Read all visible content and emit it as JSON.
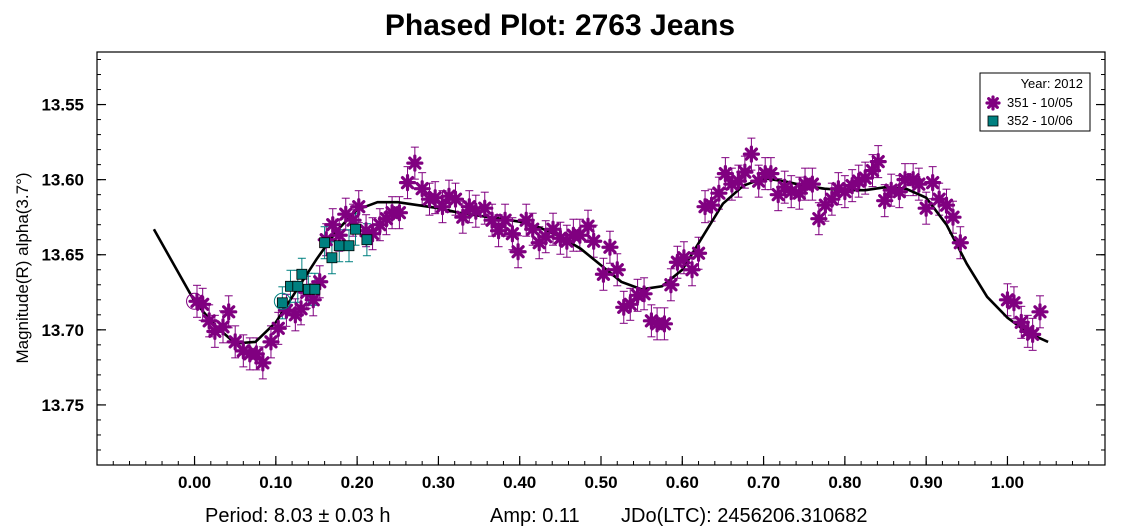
{
  "chart_data": {
    "type": "scatter",
    "title": "Phased Plot: 2763 Jeans",
    "ylabel": "Magnitude(R) alpha(3.7°)",
    "xlabel": "",
    "xlim": [
      -0.12,
      1.12
    ],
    "ylim": [
      13.79,
      13.515
    ],
    "y_inverted": true,
    "x_ticks": [
      "0.00",
      "0.10",
      "0.20",
      "0.30",
      "0.40",
      "0.50",
      "0.60",
      "0.70",
      "0.80",
      "0.90",
      "1.00"
    ],
    "x_tick_values": [
      0.0,
      0.1,
      0.2,
      0.3,
      0.4,
      0.5,
      0.6,
      0.7,
      0.8,
      0.9,
      1.0
    ],
    "y_ticks": [
      "13.55",
      "13.60",
      "13.65",
      "13.70",
      "13.75"
    ],
    "y_tick_values": [
      13.55,
      13.6,
      13.65,
      13.7,
      13.75
    ],
    "grid": false,
    "legend": {
      "placement": "top-right",
      "title": "Year: 2012",
      "entries": [
        "351 - 10/05",
        "352 - 10/06"
      ]
    },
    "footer": {
      "period": "Period: 8.03 ± 0.03 h",
      "amp": "Amp: 0.11",
      "jdo": "JDo(LTC): 2456206.310682"
    },
    "series": [
      {
        "name": "351 - 10/05",
        "marker": "asterisk",
        "color": "#800080",
        "points": [
          [
            0.003,
            13.681
          ],
          [
            0.01,
            13.683
          ],
          [
            0.018,
            13.694
          ],
          [
            0.025,
            13.701
          ],
          [
            0.035,
            13.698
          ],
          [
            0.042,
            13.688
          ],
          [
            0.05,
            13.708
          ],
          [
            0.06,
            13.714
          ],
          [
            0.068,
            13.716
          ],
          [
            0.076,
            13.716
          ],
          [
            0.084,
            13.722
          ],
          [
            0.094,
            13.708
          ],
          [
            0.103,
            13.699
          ],
          [
            0.113,
            13.687
          ],
          [
            0.124,
            13.69
          ],
          [
            0.131,
            13.686
          ],
          [
            0.138,
            13.675
          ],
          [
            0.146,
            13.68
          ],
          [
            0.154,
            13.668
          ],
          [
            0.162,
            13.64
          ],
          [
            0.17,
            13.63
          ],
          [
            0.178,
            13.637
          ],
          [
            0.186,
            13.623
          ],
          [
            0.195,
            13.627
          ],
          [
            0.202,
            13.618
          ],
          [
            0.211,
            13.634
          ],
          [
            0.219,
            13.636
          ],
          [
            0.228,
            13.63
          ],
          [
            0.236,
            13.626
          ],
          [
            0.243,
            13.622
          ],
          [
            0.252,
            13.622
          ],
          [
            0.262,
            13.602
          ],
          [
            0.271,
            13.589
          ],
          [
            0.28,
            13.606
          ],
          [
            0.289,
            13.613
          ],
          [
            0.296,
            13.612
          ],
          [
            0.305,
            13.618
          ],
          [
            0.313,
            13.611
          ],
          [
            0.321,
            13.613
          ],
          [
            0.33,
            13.625
          ],
          [
            0.338,
            13.618
          ],
          [
            0.346,
            13.621
          ],
          [
            0.357,
            13.619
          ],
          [
            0.366,
            13.627
          ],
          [
            0.374,
            13.634
          ],
          [
            0.382,
            13.627
          ],
          [
            0.391,
            13.636
          ],
          [
            0.398,
            13.648
          ],
          [
            0.408,
            13.627
          ],
          [
            0.416,
            13.633
          ],
          [
            0.424,
            13.642
          ],
          [
            0.432,
            13.638
          ],
          [
            0.441,
            13.633
          ],
          [
            0.45,
            13.639
          ],
          [
            0.458,
            13.641
          ],
          [
            0.466,
            13.637
          ],
          [
            0.474,
            13.637
          ],
          [
            0.484,
            13.631
          ],
          [
            0.491,
            13.641
          ],
          [
            0.503,
            13.663
          ],
          [
            0.511,
            13.645
          ],
          [
            0.52,
            13.66
          ],
          [
            0.528,
            13.685
          ],
          [
            0.536,
            13.683
          ],
          [
            0.545,
            13.677
          ],
          [
            0.553,
            13.676
          ],
          [
            0.562,
            13.694
          ],
          [
            0.569,
            13.696
          ],
          [
            0.578,
            13.696
          ],
          [
            0.586,
            13.67
          ],
          [
            0.594,
            13.655
          ],
          [
            0.602,
            13.652
          ],
          [
            0.612,
            13.66
          ],
          [
            0.62,
            13.649
          ],
          [
            0.628,
            13.618
          ],
          [
            0.636,
            13.617
          ],
          [
            0.645,
            13.609
          ],
          [
            0.653,
            13.596
          ],
          [
            0.661,
            13.603
          ],
          [
            0.669,
            13.601
          ],
          [
            0.677,
            13.595
          ],
          [
            0.685,
            13.583
          ],
          [
            0.694,
            13.601
          ],
          [
            0.702,
            13.596
          ],
          [
            0.709,
            13.596
          ],
          [
            0.718,
            13.61
          ],
          [
            0.726,
            13.605
          ],
          [
            0.734,
            13.608
          ],
          [
            0.744,
            13.609
          ],
          [
            0.751,
            13.603
          ],
          [
            0.76,
            13.603
          ],
          [
            0.768,
            13.626
          ],
          [
            0.776,
            13.617
          ],
          [
            0.784,
            13.613
          ],
          [
            0.792,
            13.606
          ],
          [
            0.8,
            13.608
          ],
          [
            0.809,
            13.604
          ],
          [
            0.817,
            13.601
          ],
          [
            0.825,
            13.599
          ],
          [
            0.834,
            13.594
          ],
          [
            0.841,
            13.588
          ],
          [
            0.849,
            13.614
          ],
          [
            0.857,
            13.607
          ],
          [
            0.867,
            13.608
          ],
          [
            0.874,
            13.6
          ],
          [
            0.884,
            13.6
          ],
          [
            0.891,
            13.603
          ],
          [
            0.9,
            13.619
          ],
          [
            0.908,
            13.602
          ],
          [
            0.916,
            13.613
          ],
          [
            0.925,
            13.617
          ],
          [
            0.933,
            13.625
          ],
          [
            0.942,
            13.642
          ],
          [
            1.0,
            13.68
          ],
          [
            1.008,
            13.682
          ],
          [
            1.017,
            13.695
          ],
          [
            1.025,
            13.701
          ],
          [
            1.031,
            13.703
          ],
          [
            1.04,
            13.688
          ]
        ]
      },
      {
        "name": "352 - 10/06",
        "marker": "square",
        "color": "#008080",
        "points": [
          [
            0.108,
            13.682
          ],
          [
            0.118,
            13.671
          ],
          [
            0.127,
            13.671
          ],
          [
            0.132,
            13.663
          ],
          [
            0.14,
            13.673
          ],
          [
            0.148,
            13.673
          ],
          [
            0.16,
            13.642
          ],
          [
            0.169,
            13.652
          ],
          [
            0.178,
            13.644
          ],
          [
            0.19,
            13.644
          ],
          [
            0.198,
            13.633
          ],
          [
            0.212,
            13.64
          ]
        ]
      }
    ],
    "fit_curve": {
      "x": [
        -0.05,
        -0.025,
        0.0,
        0.025,
        0.05,
        0.075,
        0.1,
        0.125,
        0.15,
        0.175,
        0.2,
        0.225,
        0.25,
        0.275,
        0.3,
        0.325,
        0.35,
        0.375,
        0.4,
        0.425,
        0.45,
        0.475,
        0.5,
        0.525,
        0.55,
        0.575,
        0.6,
        0.625,
        0.65,
        0.675,
        0.7,
        0.725,
        0.75,
        0.775,
        0.8,
        0.825,
        0.85,
        0.875,
        0.9,
        0.925,
        0.95,
        0.975,
        1.0,
        1.025,
        1.05
      ],
      "y": [
        13.633,
        13.657,
        13.681,
        13.697,
        13.709,
        13.708,
        13.695,
        13.674,
        13.653,
        13.634,
        13.62,
        13.615,
        13.615,
        13.617,
        13.619,
        13.622,
        13.624,
        13.626,
        13.628,
        13.632,
        13.638,
        13.646,
        13.657,
        13.668,
        13.673,
        13.671,
        13.66,
        13.638,
        13.616,
        13.604,
        13.599,
        13.601,
        13.604,
        13.606,
        13.607,
        13.607,
        13.605,
        13.606,
        13.612,
        13.63,
        13.656,
        13.678,
        13.692,
        13.702,
        13.708
      ]
    }
  }
}
